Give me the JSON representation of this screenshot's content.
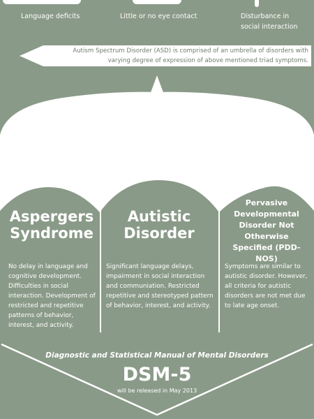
{
  "triad": [
    {
      "label": "Language deficits",
      "icon": "speech-icon"
    },
    {
      "label": "Little or no eye contact",
      "icon": "eye-icon"
    },
    {
      "label": "Disturbance in social interaction",
      "icon": "people-icon"
    }
  ],
  "banner": {
    "text": "Autism Spectrum Disorder (ASD) is comprised of an umbrella of disorders with varying degree of expression of above mentioned triad symptoms."
  },
  "disorders": [
    {
      "title": "Aspergers Syndrome",
      "description": "No delay in language and cognitive development. Difficulties in social interaction. Development of restricted and repetitive patterns of behavior, interest, and activity."
    },
    {
      "title": "Autistic Disorder",
      "description": "Significant language delays, impairment in social interaction and communiation. Restricted repetitive and stereotyped pattern of behavior, interest, and activity."
    },
    {
      "title": "Pervasive Developmental Disorder Not Otherwise Specified (PDD-NOS)",
      "description": "Symptoms are similar to autistic disorder. However, all criteria for autistic disorders are not met due to late age onset."
    }
  ],
  "dsm": {
    "manual_name": "Diagnostic and Statistical Manual of Mental Disorders",
    "title": "DSM-5",
    "release_note": "will be released in May 2013"
  },
  "colors": {
    "background": "#8a9a88",
    "foreground": "#ffffff",
    "banner_text": "#6e7d6c"
  }
}
